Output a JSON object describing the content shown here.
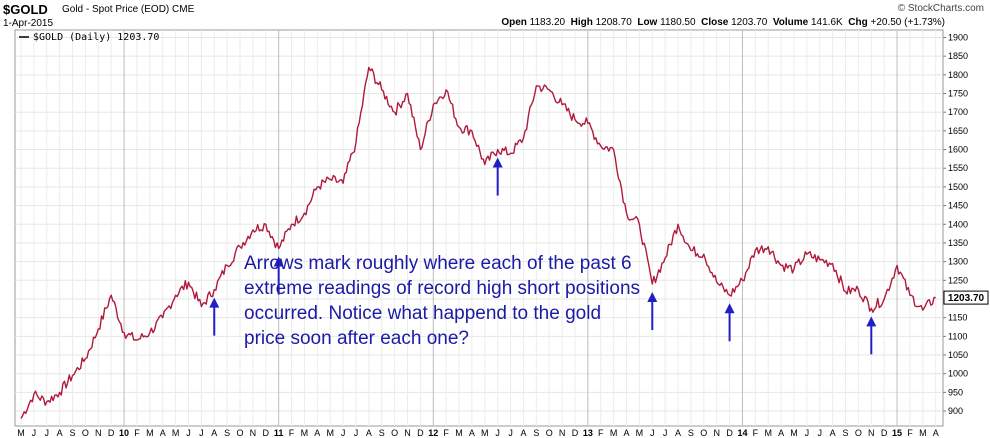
{
  "header": {
    "symbol": "$GOLD",
    "description": "Gold - Spot Price (EOD)",
    "exchange": "CME",
    "date": "1-Apr-2015",
    "open_label": "Open",
    "open": "1183.20",
    "high_label": "High",
    "high": "1208.70",
    "low_label": "Low",
    "low": "1180.50",
    "close_label": "Close",
    "close": "1203.70",
    "volume_label": "Volume",
    "volume": "141.6K",
    "chg_label": "Chg",
    "chg": "+20.50 (+1.73%)"
  },
  "credit": "© StockCharts.com",
  "chart_data": {
    "type": "line",
    "legend": "$GOLD (Daily) 1203.70",
    "legend_placement": "top-left",
    "last_value_label": "1203.70",
    "last_value": 1203.7,
    "line_color": "#b01a3a",
    "grid": true,
    "y_axis_side": "right",
    "ylim": [
      860,
      1920
    ],
    "y_ticks": [
      900,
      950,
      1000,
      1050,
      1100,
      1150,
      1200,
      1250,
      1300,
      1350,
      1400,
      1450,
      1500,
      1550,
      1600,
      1650,
      1700,
      1750,
      1800,
      1850,
      1900
    ],
    "x_ticks": [
      "M",
      "J",
      "J",
      "A",
      "S",
      "O",
      "N",
      "D",
      "10",
      "F",
      "M",
      "A",
      "M",
      "J",
      "J",
      "A",
      "S",
      "O",
      "N",
      "D",
      "11",
      "F",
      "M",
      "A",
      "M",
      "J",
      "J",
      "A",
      "S",
      "O",
      "N",
      "D",
      "12",
      "F",
      "M",
      "A",
      "M",
      "J",
      "J",
      "A",
      "S",
      "O",
      "N",
      "D",
      "13",
      "F",
      "M",
      "A",
      "M",
      "J",
      "J",
      "A",
      "S",
      "O",
      "N",
      "D",
      "14",
      "F",
      "M",
      "A",
      "M",
      "J",
      "J",
      "A",
      "S",
      "O",
      "N",
      "D",
      "15",
      "F",
      "M",
      "A"
    ],
    "year_ticks": [
      "10",
      "11",
      "12",
      "13",
      "14",
      "15"
    ],
    "x_start": "2009-05",
    "x_end": "2015-04",
    "series": [
      {
        "points": [
          [
            "2009-05",
            880
          ],
          [
            "2009-06",
            945
          ],
          [
            "2009-07",
            925
          ],
          [
            "2009-08",
            950
          ],
          [
            "2009-09",
            995
          ],
          [
            "2009-10",
            1040
          ],
          [
            "2009-11",
            1120
          ],
          [
            "2009-12",
            1210
          ],
          [
            "2010-01",
            1110
          ],
          [
            "2010-02",
            1090
          ],
          [
            "2010-03",
            1110
          ],
          [
            "2010-04",
            1150
          ],
          [
            "2010-05",
            1210
          ],
          [
            "2010-06",
            1245
          ],
          [
            "2010-07",
            1180
          ],
          [
            "2010-08",
            1225
          ],
          [
            "2010-09",
            1290
          ],
          [
            "2010-10",
            1340
          ],
          [
            "2010-11",
            1385
          ],
          [
            "2010-12",
            1400
          ],
          [
            "2011-01",
            1335
          ],
          [
            "2011-02",
            1400
          ],
          [
            "2011-03",
            1430
          ],
          [
            "2011-04",
            1500
          ],
          [
            "2011-05",
            1520
          ],
          [
            "2011-06",
            1510
          ],
          [
            "2011-07",
            1620
          ],
          [
            "2011-08",
            1820
          ],
          [
            "2011-09",
            1760
          ],
          [
            "2011-10",
            1700
          ],
          [
            "2011-11",
            1750
          ],
          [
            "2011-12",
            1600
          ],
          [
            "2012-01",
            1720
          ],
          [
            "2012-02",
            1760
          ],
          [
            "2012-03",
            1660
          ],
          [
            "2012-04",
            1650
          ],
          [
            "2012-05",
            1560
          ],
          [
            "2012-06",
            1600
          ],
          [
            "2012-07",
            1590
          ],
          [
            "2012-08",
            1630
          ],
          [
            "2012-09",
            1770
          ],
          [
            "2012-10",
            1760
          ],
          [
            "2012-11",
            1720
          ],
          [
            "2012-12",
            1680
          ],
          [
            "2013-01",
            1670
          ],
          [
            "2013-02",
            1610
          ],
          [
            "2013-03",
            1600
          ],
          [
            "2013-04",
            1430
          ],
          [
            "2013-05",
            1400
          ],
          [
            "2013-06",
            1240
          ],
          [
            "2013-07",
            1310
          ],
          [
            "2013-08",
            1400
          ],
          [
            "2013-09",
            1330
          ],
          [
            "2013-10",
            1320
          ],
          [
            "2013-11",
            1245
          ],
          [
            "2013-12",
            1210
          ],
          [
            "2014-01",
            1250
          ],
          [
            "2014-02",
            1330
          ],
          [
            "2014-03",
            1340
          ],
          [
            "2014-04",
            1290
          ],
          [
            "2014-05",
            1280
          ],
          [
            "2014-06",
            1320
          ],
          [
            "2014-07",
            1305
          ],
          [
            "2014-08",
            1295
          ],
          [
            "2014-09",
            1220
          ],
          [
            "2014-10",
            1225
          ],
          [
            "2014-11",
            1175
          ],
          [
            "2014-12",
            1200
          ],
          [
            "2015-01",
            1290
          ],
          [
            "2015-02",
            1210
          ],
          [
            "2015-03",
            1170
          ],
          [
            "2015-04",
            1203.7
          ]
        ]
      }
    ],
    "arrows": [
      "2010-08",
      "2011-01",
      "2012-06",
      "2013-06",
      "2013-12",
      "2014-11"
    ],
    "annotation": "Arrows mark roughly where each of the past 6 extreme readings of record high short positions occurred. Notice what happend to the gold price soon after each one?"
  }
}
